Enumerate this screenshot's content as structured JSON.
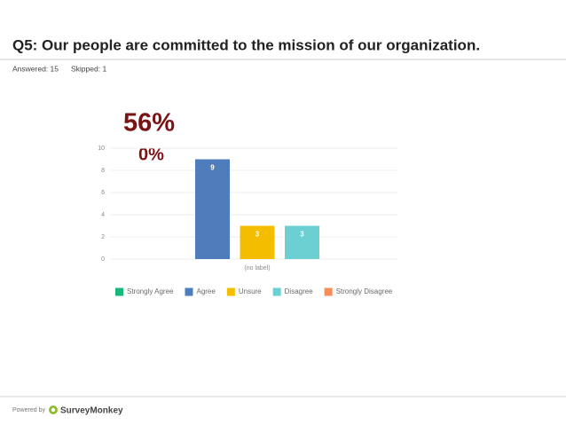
{
  "header": {
    "title": "Q5: Our people are committed to the mission of our organization.",
    "answered": "Answered: 15",
    "skipped": "Skipped: 1"
  },
  "chart_data": {
    "type": "bar",
    "annotations": [
      "56%",
      "0%"
    ],
    "categories": [
      "(no label)"
    ],
    "series": [
      {
        "name": "Strongly Agree",
        "color": "#1bb77a",
        "values": [
          0
        ]
      },
      {
        "name": "Agree",
        "color": "#4f7dbb",
        "values": [
          9
        ]
      },
      {
        "name": "Unsure",
        "color": "#f5bd00",
        "values": [
          3
        ]
      },
      {
        "name": "Disagree",
        "color": "#6ccfd1",
        "values": [
          3
        ]
      },
      {
        "name": "Strongly Disagree",
        "color": "#f68e5c",
        "values": [
          0
        ]
      }
    ],
    "ylim": [
      0,
      10
    ],
    "yticks": [
      0,
      2,
      4,
      6,
      8,
      10
    ],
    "grid": true,
    "legend": "bottom"
  },
  "footer": {
    "powered_by": "Powered by",
    "brand": "SurveyMonkey"
  }
}
